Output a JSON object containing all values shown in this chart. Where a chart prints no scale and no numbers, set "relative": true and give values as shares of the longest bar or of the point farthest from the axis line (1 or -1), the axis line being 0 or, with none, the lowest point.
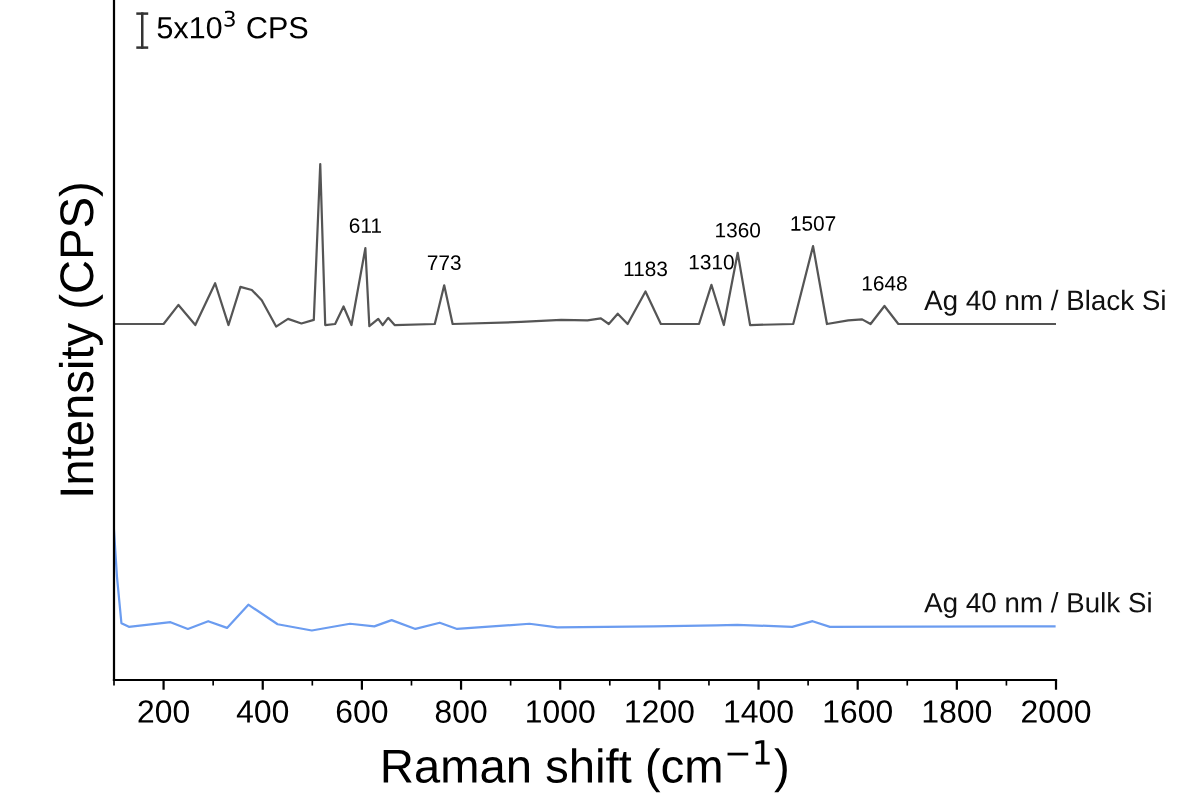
{
  "chart_data": {
    "type": "line",
    "relative": true,
    "xlabel": "Raman shift (cm$^{−1}$)",
    "ylabel": "Intensity (CPS)",
    "xlim": [
      100,
      2000
    ],
    "xticks": [
      200,
      400,
      600,
      800,
      1000,
      1200,
      1400,
      1600,
      1800,
      2000
    ],
    "grid": false,
    "legend": false,
    "marker": "none",
    "line_style": "solid",
    "series": [
      {
        "name": "Ag 40 nm / Black Si",
        "color": "#555555",
        "x": [
          100,
          200,
          230,
          264,
          304,
          331,
          355,
          378,
          398,
          427,
          451,
          478,
          503,
          516,
          526,
          546,
          563,
          579,
          607,
          615,
          633,
          642,
          653,
          666,
          747,
          766,
          783,
          921,
          1002,
          1055,
          1082,
          1098,
          1116,
          1136,
          1172,
          1203,
          1280,
          1305,
          1330,
          1358,
          1383,
          1470,
          1510,
          1538,
          1581,
          1609,
          1626,
          1654,
          1682,
          2000
        ],
        "values": [
          0.69,
          0.69,
          0.727,
          0.688,
          0.769,
          0.688,
          0.762,
          0.756,
          0.736,
          0.685,
          0.7,
          0.691,
          0.698,
          1.0,
          0.688,
          0.69,
          0.724,
          0.688,
          0.837,
          0.686,
          0.7,
          0.688,
          0.702,
          0.688,
          0.69,
          0.765,
          0.69,
          0.694,
          0.698,
          0.697,
          0.701,
          0.69,
          0.71,
          0.69,
          0.753,
          0.69,
          0.69,
          0.766,
          0.688,
          0.828,
          0.688,
          0.69,
          0.841,
          0.69,
          0.697,
          0.699,
          0.69,
          0.725,
          0.69,
          0.69
        ]
      },
      {
        "name": "Ag 40 nm / Bulk Si",
        "color": "#6b9cf0",
        "x": [
          100,
          106,
          115,
          130,
          214,
          249,
          290,
          328,
          371,
          430,
          499,
          576,
          625,
          660,
          708,
          757,
          792,
          938,
          994,
          1189,
          1315,
          1357,
          1468,
          1509,
          1544,
          1997
        ],
        "values": [
          0.29,
          0.2,
          0.11,
          0.103,
          0.112,
          0.099,
          0.114,
          0.101,
          0.146,
          0.108,
          0.096,
          0.109,
          0.104,
          0.116,
          0.099,
          0.111,
          0.099,
          0.109,
          0.102,
          0.104,
          0.106,
          0.107,
          0.103,
          0.114,
          0.103,
          0.104
        ]
      }
    ],
    "annotations": [
      "5x10$^{3}$ CPS",
      {
        "text": "611",
        "x": 607,
        "y": 0.837
      },
      {
        "text": "773",
        "x": 766,
        "y": 0.765
      },
      {
        "text": "1183",
        "x": 1172,
        "y": 0.753
      },
      {
        "text": "1310",
        "x": 1305,
        "y": 0.766
      },
      {
        "text": "1360",
        "x": 1358,
        "y": 0.828
      },
      {
        "text": "1507",
        "x": 1510,
        "y": 0.841
      },
      {
        "text": "1648",
        "x": 1654,
        "y": 0.725
      }
    ]
  }
}
